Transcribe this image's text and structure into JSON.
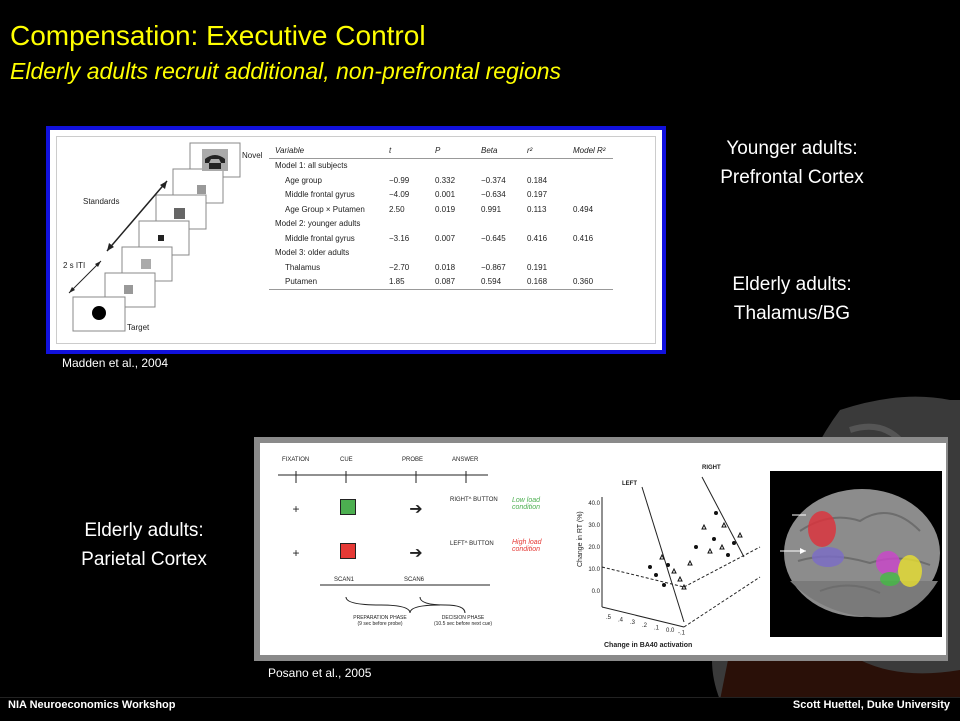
{
  "title": "Compensation: Executive Control",
  "subtitle": "Elderly adults recruit additional, non-prefrontal regions",
  "labels": {
    "younger_line1": "Younger adults:",
    "younger_line2": "Prefrontal Cortex",
    "elderly_tbg_line1": "Elderly adults:",
    "elderly_tbg_line2": "Thalamus/BG",
    "elderly_par_line1": "Elderly adults:",
    "elderly_par_line2": "Parietal Cortex"
  },
  "citations": {
    "madden": "Madden et al., 2004",
    "posano": "Posano et al., 2005"
  },
  "footer": {
    "left": "NIA Neuroeconomics Workshop",
    "right": "Scott Huettel, Duke University"
  },
  "figure1": {
    "paradigm": {
      "standards": "Standards",
      "iti": "2 s ITI",
      "novel": "Novel",
      "target": "Target"
    },
    "table": {
      "headers": [
        "Variable",
        "t",
        "P",
        "Beta",
        "r²",
        "Model R²"
      ],
      "rows": [
        [
          "Model 1: all subjects",
          "",
          "",
          "",
          "",
          ""
        ],
        [
          "Age group",
          "−0.99",
          "0.332",
          "−0.374",
          "0.184",
          ""
        ],
        [
          "Middle frontal gyrus",
          "−4.09",
          "0.001",
          "−0.634",
          "0.197",
          ""
        ],
        [
          "Age Group × Putamen",
          "2.50",
          "0.019",
          "0.991",
          "0.113",
          "0.494"
        ],
        [
          "Model 2: younger adults",
          "",
          "",
          "",
          "",
          ""
        ],
        [
          "Middle frontal gyrus",
          "−3.16",
          "0.007",
          "−0.645",
          "0.416",
          "0.416"
        ],
        [
          "Model 3: older adults",
          "",
          "",
          "",
          "",
          ""
        ],
        [
          "Thalamus",
          "−2.70",
          "0.018",
          "−0.867",
          "0.191",
          ""
        ],
        [
          "Putamen",
          "1.85",
          "0.087",
          "0.594",
          "0.168",
          "0.360"
        ]
      ]
    }
  },
  "figure2": {
    "task": {
      "fixation": "FIXATION",
      "cue": "CUE",
      "probe": "PROBE",
      "answer": "ANSWER",
      "right_button": "RIGHT^ BUTTON",
      "left_button": "LEFT^ BUTTON",
      "low_load": "Low load condition",
      "high_load": "High load condition",
      "scan1": "SCAN1",
      "scan6": "SCAN6",
      "prep_phase": "PREPARATION PHASE",
      "prep_note": "(9 sec before probe)",
      "decision_phase": "DECISION PHASE",
      "decision_note": "(10.5 sec before next cue)",
      "low_color": "#4caf50",
      "high_color": "#e53935"
    },
    "scatter": {
      "left_label": "LEFT",
      "right_label": "RIGHT",
      "ylabel": "Change in RT (%)",
      "xlabel": "Change in BA40 activation",
      "y_ticks": [
        "40.0",
        "30.0",
        "20.0",
        "10.0",
        "0.0"
      ],
      "x_ticks": [
        ".5",
        ".4",
        ".3",
        ".2",
        ".1",
        "0.0",
        "-.1"
      ]
    },
    "brain": {
      "region_colors": [
        "#e0303a",
        "#7a6cc8",
        "#cc44cc",
        "#e8e030",
        "#44bb44"
      ]
    }
  }
}
